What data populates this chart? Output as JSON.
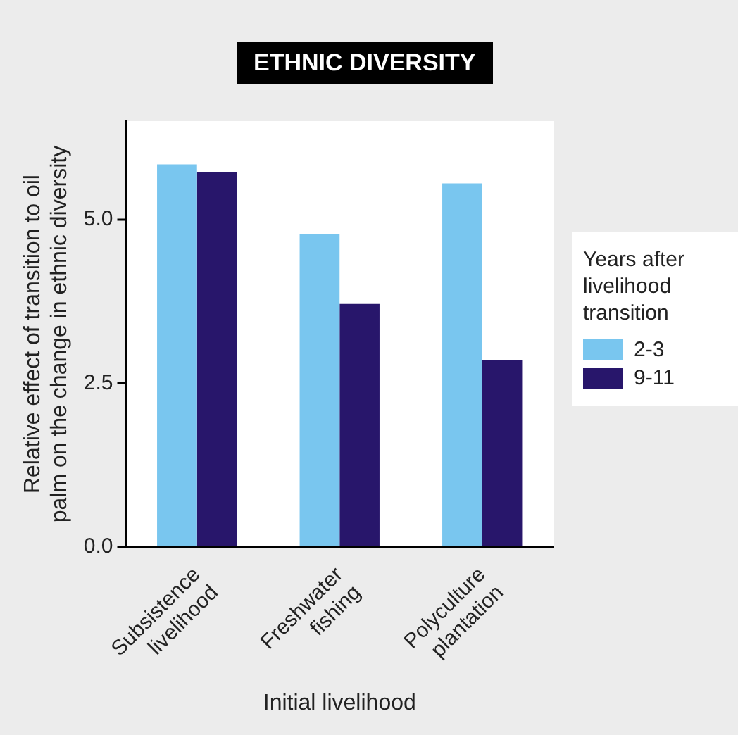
{
  "chart_data": {
    "type": "bar",
    "title": "ETHNIC DIVERSITY",
    "xlabel": "Initial livelihood",
    "ylabel": "Relative effect of transition to oil palm on the change in ethnic diversity",
    "legend_title": "Years after livelihood transition",
    "categories": [
      "Subsistence livelihood",
      "Freshwater fishing",
      "Polyculture plantation"
    ],
    "series": [
      {
        "name": "2-3",
        "color": "#79c6ef",
        "values": [
          5.84,
          4.78,
          5.55
        ]
      },
      {
        "name": "9-11",
        "color": "#28166b",
        "values": [
          5.72,
          3.71,
          2.85
        ]
      }
    ],
    "ylim": [
      0,
      6.5
    ],
    "yticks": [
      {
        "value": 0,
        "label": "0.0"
      },
      {
        "value": 2.5,
        "label": "2.5"
      },
      {
        "value": 5,
        "label": "5.0"
      }
    ],
    "grid": false,
    "legend": "right"
  }
}
